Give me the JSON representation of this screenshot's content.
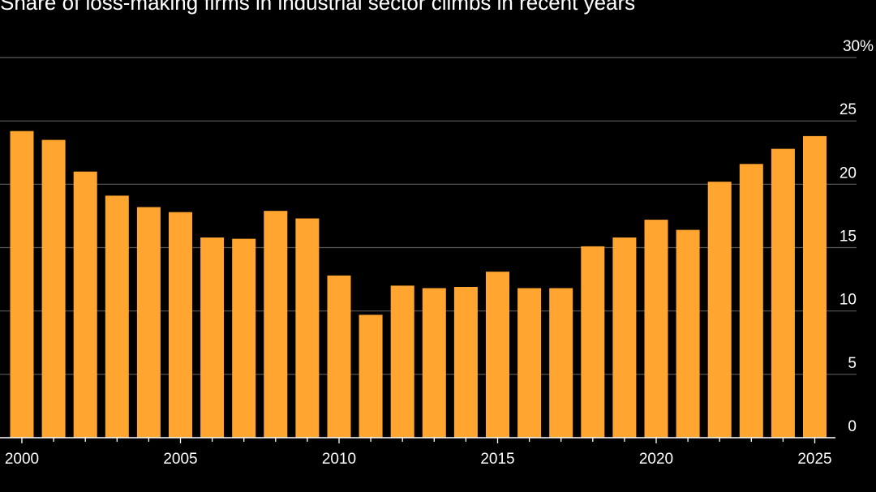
{
  "chart_data": {
    "type": "bar",
    "title": "Share of loss-making firms in industrial sector climbs in recent years",
    "xlabel": "",
    "ylabel": "",
    "ylim": [
      0,
      30
    ],
    "yticks": [
      0,
      5,
      10,
      15,
      20,
      25,
      30
    ],
    "ytick_labels": [
      "0",
      "5",
      "10",
      "15",
      "20",
      "25",
      "30%"
    ],
    "xtick_labels": [
      "2000",
      "2005",
      "2010",
      "2015",
      "2020",
      "2025"
    ],
    "categories": [
      2000,
      2001,
      2002,
      2003,
      2004,
      2005,
      2006,
      2007,
      2008,
      2009,
      2010,
      2011,
      2012,
      2013,
      2014,
      2015,
      2016,
      2017,
      2018,
      2019,
      2020,
      2021,
      2022,
      2023,
      2024,
      2025
    ],
    "values": [
      24.2,
      23.5,
      21.0,
      19.1,
      18.2,
      17.8,
      15.8,
      15.7,
      17.9,
      17.3,
      12.8,
      9.7,
      12.0,
      11.8,
      11.9,
      13.1,
      11.8,
      11.8,
      15.1,
      15.8,
      17.2,
      16.4,
      20.2,
      21.6,
      22.8,
      23.8
    ],
    "colors": {
      "bar": "#ffa530",
      "grid": "#5a5a5a",
      "axis": "#ffffff",
      "text": "#ffffff",
      "background": "#000000"
    }
  }
}
